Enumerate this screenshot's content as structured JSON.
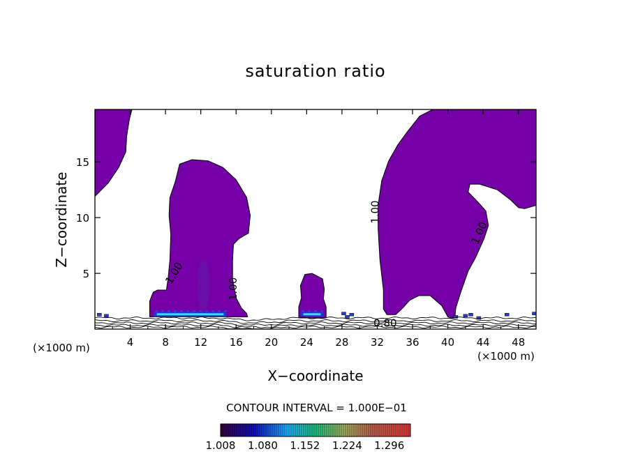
{
  "chart_data": {
    "type": "heatmap",
    "title": "saturation ratio",
    "xlabel": "X−coordinate",
    "ylabel": "Z−coordinate",
    "x_unit_left": "(×1000 m)",
    "x_unit_right": "(×1000 m)",
    "x_ticks": [
      4,
      8,
      12,
      16,
      20,
      24,
      28,
      32,
      36,
      40,
      44,
      48
    ],
    "y_ticks": [
      5,
      10,
      15
    ],
    "xlim": [
      0,
      50
    ],
    "ylim": [
      0,
      19.7
    ],
    "contour_interval": "CONTOUR INTERVAL = 1.000E−01",
    "contour_labels": [
      {
        "text": "1.00",
        "x": 9.0,
        "z": 5.0,
        "angle": -60
      },
      {
        "text": "1.00",
        "x": 15.7,
        "z": 3.6,
        "angle": -90
      },
      {
        "text": "1.00",
        "x": 31.8,
        "z": 10.5,
        "angle": -90
      },
      {
        "text": "1.00",
        "x": 43.6,
        "z": 8.6,
        "angle": -65
      },
      {
        "text": "0.80",
        "x": 32.9,
        "z": 0.5,
        "angle": 0
      }
    ],
    "colorbar": {
      "tick_labels": [
        "1.008",
        "1.080",
        "1.152",
        "1.224",
        "1.296"
      ],
      "min": 1.008,
      "max": 1.332
    },
    "fill_color": "#7600a8",
    "regions": [
      {
        "name": "cloud-left-edge",
        "outline": [
          [
            0,
            19.7
          ],
          [
            4.2,
            19.7
          ],
          [
            3.9,
            18.8
          ],
          [
            3.6,
            17.3
          ],
          [
            3.5,
            15.9
          ],
          [
            2.7,
            14.5
          ],
          [
            1.5,
            13.1
          ],
          [
            0.5,
            12.3
          ],
          [
            0,
            11.9
          ]
        ]
      },
      {
        "name": "cloud-x12",
        "outline": [
          [
            6.2,
            1.3
          ],
          [
            6.2,
            2.5
          ],
          [
            6.6,
            3.3
          ],
          [
            7.1,
            3.5
          ],
          [
            8.1,
            3.5
          ],
          [
            8.3,
            4.6
          ],
          [
            8.5,
            6.2
          ],
          [
            8.6,
            8.5
          ],
          [
            8.4,
            10.2
          ],
          [
            8.5,
            11.8
          ],
          [
            9.1,
            13.2
          ],
          [
            9.6,
            14.8
          ],
          [
            11.0,
            15.2
          ],
          [
            12.8,
            15.1
          ],
          [
            14.5,
            14.5
          ],
          [
            16.0,
            13.4
          ],
          [
            17.2,
            11.8
          ],
          [
            17.6,
            10.2
          ],
          [
            17.4,
            8.6
          ],
          [
            16.3,
            8.1
          ],
          [
            15.7,
            7.6
          ],
          [
            15.6,
            6.1
          ],
          [
            15.6,
            4.5
          ],
          [
            16.0,
            2.8
          ],
          [
            16.6,
            1.9
          ],
          [
            17.2,
            1.4
          ],
          [
            17.3,
            1.1
          ],
          [
            6.2,
            1.1
          ]
        ]
      },
      {
        "name": "cloud-x24",
        "outline": [
          [
            23.1,
            1.0
          ],
          [
            23.1,
            2.0
          ],
          [
            23.4,
            2.8
          ],
          [
            23.3,
            3.9
          ],
          [
            23.8,
            4.9
          ],
          [
            24.6,
            5.0
          ],
          [
            25.8,
            4.5
          ],
          [
            26.0,
            3.6
          ],
          [
            25.9,
            2.7
          ],
          [
            26.2,
            2.0
          ],
          [
            26.2,
            1.0
          ]
        ]
      },
      {
        "name": "cloud-x38",
        "outline": [
          [
            33.1,
            1.3
          ],
          [
            32.7,
            1.8
          ],
          [
            32.7,
            3.5
          ],
          [
            32.3,
            6.2
          ],
          [
            32.1,
            9.0
          ],
          [
            32.1,
            11.1
          ],
          [
            32.5,
            13.3
          ],
          [
            33.3,
            15.1
          ],
          [
            34.3,
            16.5
          ],
          [
            35.4,
            17.7
          ],
          [
            36.8,
            19.1
          ],
          [
            38.3,
            19.7
          ],
          [
            50,
            19.7
          ],
          [
            50,
            11.1
          ],
          [
            48.7,
            10.8
          ],
          [
            48.0,
            10.9
          ],
          [
            47.1,
            11.6
          ],
          [
            45.6,
            12.5
          ],
          [
            43.6,
            13.0
          ],
          [
            42.5,
            13.0
          ],
          [
            42.3,
            12.3
          ],
          [
            43.4,
            11.4
          ],
          [
            44.3,
            10.6
          ],
          [
            44.6,
            9.3
          ],
          [
            44.1,
            8.1
          ],
          [
            43.2,
            6.5
          ],
          [
            42.3,
            5.2
          ],
          [
            41.5,
            3.4
          ],
          [
            40.9,
            1.9
          ],
          [
            40.8,
            1.0
          ],
          [
            40.3,
            1.0
          ],
          [
            40.0,
            1.1
          ],
          [
            39.3,
            2.1
          ],
          [
            38.0,
            3.0
          ],
          [
            36.7,
            3.0
          ],
          [
            35.7,
            2.6
          ],
          [
            34.9,
            1.9
          ],
          [
            34.1,
            1.3
          ]
        ]
      }
    ],
    "bright_bands": [
      {
        "x0": 6.7,
        "x1": 14.9,
        "z": 1.3
      },
      {
        "x0": 23.3,
        "x1": 25.9,
        "z": 1.3
      }
    ],
    "shaded_core": {
      "x": 12.3,
      "z0": 1.6,
      "z1": 6.2
    },
    "dots": [
      [
        0.5,
        1.3
      ],
      [
        1.3,
        1.2
      ],
      [
        28.2,
        1.4
      ],
      [
        28.6,
        1.1
      ],
      [
        29.1,
        1.3
      ],
      [
        40.9,
        1.1
      ],
      [
        42.0,
        1.2
      ],
      [
        42.6,
        1.3
      ],
      [
        43.5,
        1.0
      ],
      [
        46.7,
        1.3
      ],
      [
        49.8,
        1.4
      ]
    ]
  }
}
